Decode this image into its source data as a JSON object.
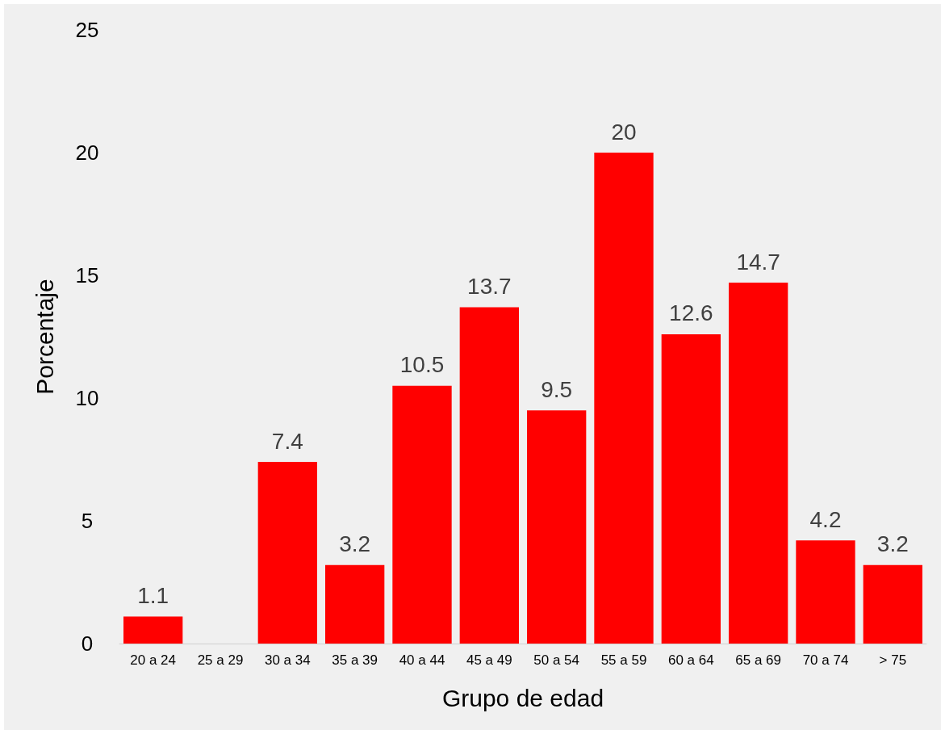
{
  "chart_data": {
    "type": "bar",
    "xlabel": "Grupo de edad",
    "ylabel": "Porcentaje",
    "categories": [
      "20 a 24",
      "25 a 29",
      "30 a 34",
      "35 a 39",
      "40 a 44",
      "45 a 49",
      "50 a 54",
      "55 a 59",
      "60 a 64",
      "65 a 69",
      "70 a 74",
      "> 75"
    ],
    "values": [
      1.1,
      null,
      7.4,
      3.2,
      10.5,
      13.7,
      9.5,
      20,
      12.6,
      14.7,
      4.2,
      3.2
    ],
    "color": "#ff0000",
    "ylim": [
      0,
      25
    ],
    "yticks": [
      0,
      5,
      10,
      15,
      20,
      25
    ],
    "grid": false,
    "data_labels": true
  }
}
